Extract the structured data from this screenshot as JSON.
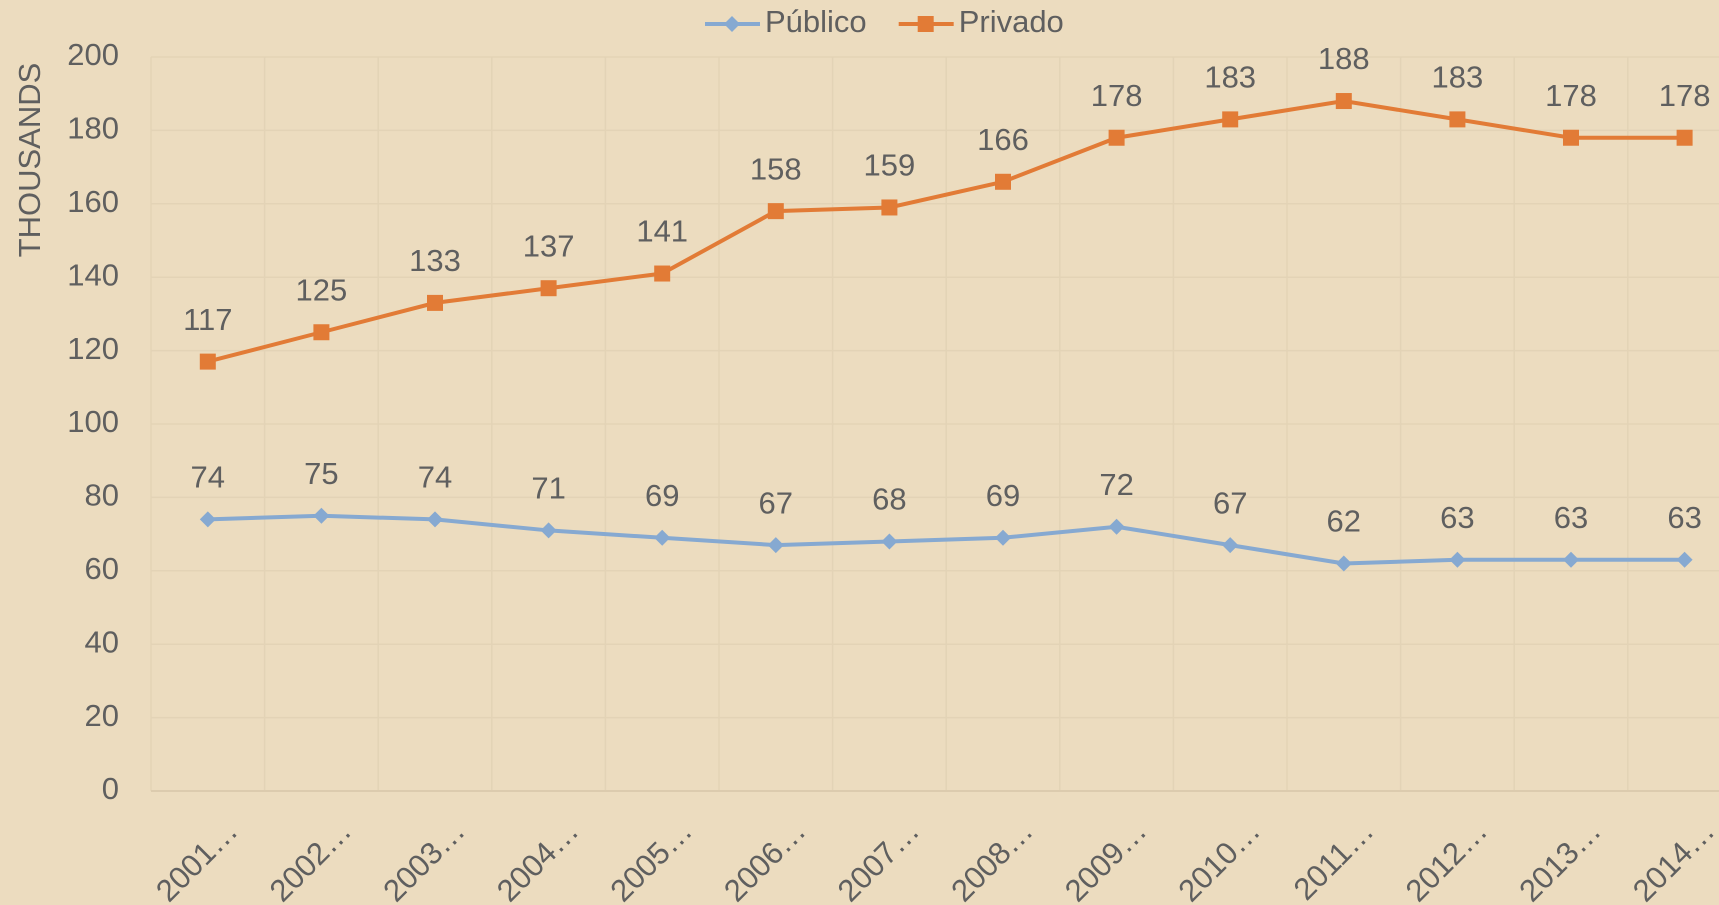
{
  "chart_data": {
    "type": "line",
    "y_label": "THOUSANDS",
    "categories": [
      "2001…",
      "2002…",
      "2003…",
      "2004…",
      "2005…",
      "2006…",
      "2007…",
      "2008…",
      "2009…",
      "2010…",
      "2011…",
      "2012…",
      "2013…",
      "2014…"
    ],
    "series": [
      {
        "name": "Público",
        "color": "#86a9d1",
        "marker": "diamond",
        "values": [
          74,
          75,
          74,
          71,
          69,
          67,
          68,
          69,
          72,
          67,
          62,
          63,
          63,
          63
        ]
      },
      {
        "name": "Privado",
        "color": "#e27b36",
        "marker": "square",
        "values": [
          117,
          125,
          133,
          137,
          141,
          158,
          159,
          166,
          178,
          183,
          188,
          183,
          178,
          178
        ]
      }
    ],
    "ylim": [
      0,
      200
    ],
    "yticks": [
      0,
      20,
      40,
      60,
      80,
      100,
      120,
      140,
      160,
      180,
      200
    ],
    "grid": true,
    "legend": "top"
  }
}
